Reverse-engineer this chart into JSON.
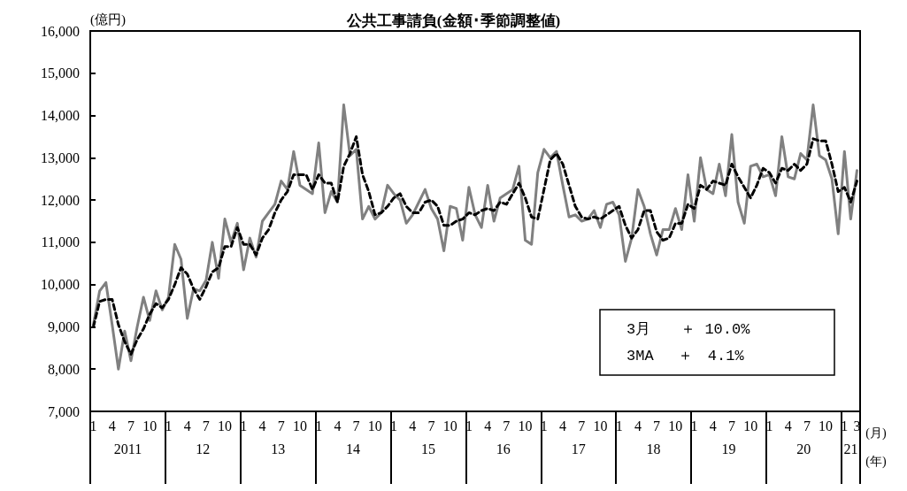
{
  "chart_data": {
    "type": "line",
    "title": "公共工事請負(金額･季節調整値)",
    "ylabel": "(億円)",
    "xlabel": "(月)\n(年)",
    "categories": [
      "1",
      null,
      null,
      "4",
      null,
      null,
      "7",
      null,
      null,
      "10",
      null,
      null,
      "1",
      null,
      null,
      "4",
      null,
      null,
      "7",
      null,
      null,
      "10",
      null,
      null,
      "1",
      null,
      null,
      "4",
      null,
      null,
      "7",
      null,
      null,
      "10",
      null,
      null,
      "1",
      null,
      null,
      "4",
      null,
      null,
      "7",
      null,
      null,
      "10",
      null,
      null,
      "1",
      null,
      null,
      "4",
      null,
      null,
      "7",
      null,
      null,
      "10",
      null,
      null,
      "1",
      null,
      null,
      "4",
      null,
      null,
      "7",
      null,
      null,
      "10",
      null,
      null,
      "1",
      null,
      null,
      "4",
      null,
      null,
      "7",
      null,
      null,
      "10",
      null,
      null,
      "1",
      null,
      null,
      "4",
      null,
      null,
      "7",
      null,
      null,
      "10",
      null,
      null,
      "1",
      null,
      null,
      "4",
      null,
      null,
      "7",
      null,
      null,
      "10",
      null,
      null,
      "1",
      null,
      null,
      "4",
      null,
      null,
      "7",
      null,
      null,
      "10",
      null,
      null,
      "1",
      null,
      "3"
    ],
    "series": [
      {
        "color": "#808080",
        "line_style": "solid",
        "values": [
          9050,
          9850,
          10050,
          9050,
          8000,
          8900,
          8200,
          9000,
          9700,
          9150,
          9850,
          9400,
          9700,
          10950,
          10600,
          9200,
          9900,
          9850,
          10100,
          11000,
          10150,
          11550,
          11000,
          11450,
          10350,
          11100,
          10650,
          11500,
          11700,
          11900,
          12450,
          12250,
          13150,
          12350,
          12250,
          12150,
          13350,
          11700,
          12200,
          11950,
          14250,
          13050,
          13200,
          11550,
          11850,
          11550,
          11700,
          12350,
          12150,
          12000,
          11450,
          11650,
          11950,
          12250,
          11800,
          11550,
          10800,
          11850,
          11800,
          11050,
          12300,
          11650,
          11350,
          12350,
          11500,
          12050,
          12150,
          12250,
          12800,
          11050,
          10950,
          12650,
          13200,
          13000,
          13150,
          12350,
          11600,
          11650,
          11500,
          11550,
          11750,
          11350,
          11900,
          11950,
          11650,
          10550,
          11100,
          12250,
          11850,
          11200,
          10700,
          11300,
          11300,
          11800,
          11300,
          12600,
          11500,
          13000,
          12250,
          12150,
          12850,
          12100,
          13550,
          11950,
          11450,
          12800,
          12850,
          12550,
          12600,
          12100,
          13500,
          12550,
          12500,
          13100,
          12950,
          14250,
          13050,
          12950,
          12500,
          11200,
          13150,
          11550,
          12700
        ]
      },
      {
        "color": "#000000",
        "line_style": "dashed",
        "values": [
          9000,
          9600,
          9650,
          9650,
          9050,
          8650,
          8350,
          8700,
          8950,
          9300,
          9550,
          9450,
          9650,
          10000,
          10400,
          10250,
          9900,
          9650,
          9950,
          10300,
          10400,
          10900,
          10900,
          11350,
          10950,
          10950,
          10700,
          11100,
          11300,
          11700,
          12000,
          12200,
          12600,
          12600,
          12600,
          12250,
          12600,
          12400,
          12400,
          11950,
          12800,
          13100,
          13500,
          12600,
          12200,
          11650,
          11700,
          11850,
          12050,
          12150,
          11850,
          11700,
          11700,
          11950,
          12000,
          11850,
          11400,
          11400,
          11500,
          11550,
          11700,
          11650,
          11750,
          11800,
          11750,
          11950,
          11900,
          12150,
          12400,
          12050,
          11600,
          11550,
          12250,
          12950,
          13100,
          12850,
          12350,
          11850,
          11600,
          11550,
          11600,
          11550,
          11650,
          11750,
          11850,
          11400,
          11100,
          11300,
          11750,
          11750,
          11250,
          11050,
          11100,
          11450,
          11450,
          11900,
          11800,
          12350,
          12250,
          12450,
          12400,
          12350,
          12850,
          12550,
          12300,
          12050,
          12350,
          12750,
          12650,
          12400,
          12750,
          12700,
          12850,
          12700,
          12850,
          13450,
          13400,
          13400,
          12850,
          12200,
          12300,
          11950,
          12450
        ]
      }
    ],
    "ylim": [
      7000,
      16000
    ],
    "yticks": [
      {
        "value": 7000,
        "label": "7,000"
      },
      {
        "value": 8000,
        "label": "8,000"
      },
      {
        "value": 9000,
        "label": "9,000"
      },
      {
        "value": 10000,
        "label": "10,000"
      },
      {
        "value": 11000,
        "label": "11,000"
      },
      {
        "value": 12000,
        "label": "12,000"
      },
      {
        "value": 13000,
        "label": "13,000"
      },
      {
        "value": 14000,
        "label": "14,000"
      },
      {
        "value": 15000,
        "label": "15,000"
      },
      {
        "value": 16000,
        "label": "16,000"
      }
    ],
    "marker": "none",
    "annotations": [
      "2011",
      "12",
      "13",
      "14",
      "15",
      "16",
      "17",
      "18",
      "19",
      "20",
      "21",
      "3月　　＋ 10.0%",
      "3MA 　＋　4.1%"
    ]
  }
}
